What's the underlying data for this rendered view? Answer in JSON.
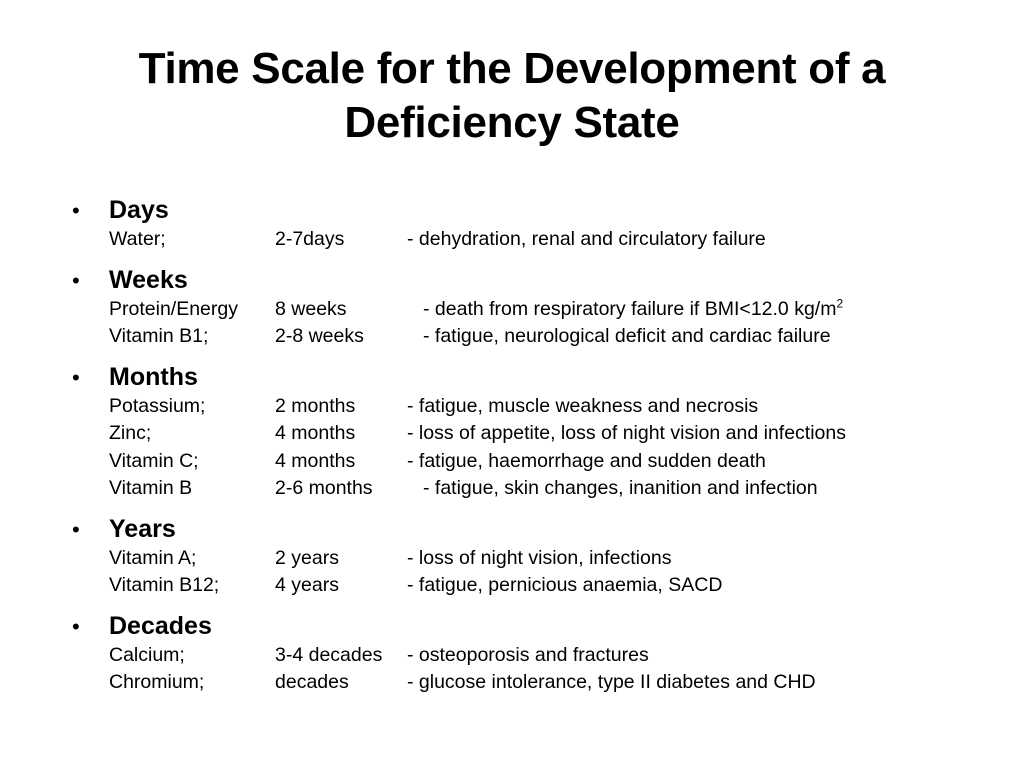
{
  "title": {
    "line1": "Time Scale for the Development of a",
    "line2": "Deficiency State"
  },
  "bullet_symbol": "•",
  "groups": [
    {
      "heading": "Days",
      "rows": [
        {
          "nutrient": "Water;",
          "time": "2-7days",
          "effect": "- dehydration, renal and circulatory failure"
        }
      ]
    },
    {
      "heading": "Weeks",
      "rows": [
        {
          "nutrient": "Protein/Energy",
          "time": "8 weeks",
          "effect": "- death from respiratory failure if BMI<12.0 kg/m",
          "sup": "2"
        },
        {
          "nutrient": "Vitamin B1;",
          "time": "2-8 weeks",
          "effect": "- fatigue, neurological deficit and cardiac failure"
        }
      ]
    },
    {
      "heading": "Months",
      "rows": [
        {
          "nutrient": "Potassium;",
          "time": "2 months",
          "effect": "- fatigue, muscle weakness and necrosis"
        },
        {
          "nutrient": "Zinc;",
          "time": "4 months",
          "effect": "- loss of appetite, loss of night vision and infections"
        },
        {
          "nutrient": "Vitamin C;",
          "time": "4 months",
          "effect": "- fatigue, haemorrhage and sudden death"
        },
        {
          "nutrient": "Vitamin B",
          "time": "2-6 months",
          "effect": "- fatigue, skin changes, inanition and infection"
        }
      ]
    },
    {
      "heading": "Years",
      "rows": [
        {
          "nutrient": "Vitamin A;",
          "time": "2 years",
          "effect": "- loss of night vision, infections"
        },
        {
          "nutrient": "Vitamin B12;",
          "time": "4 years",
          "effect": "- fatigue, pernicious anaemia, SACD"
        }
      ]
    },
    {
      "heading": "Decades",
      "rows": [
        {
          "nutrient": "Calcium;",
          "time": "3-4 decades",
          "effect": "- osteoporosis and fractures"
        },
        {
          "nutrient": "Chromium;",
          "time": "decades",
          "effect": "- glucose intolerance, type II diabetes and CHD"
        }
      ]
    }
  ]
}
